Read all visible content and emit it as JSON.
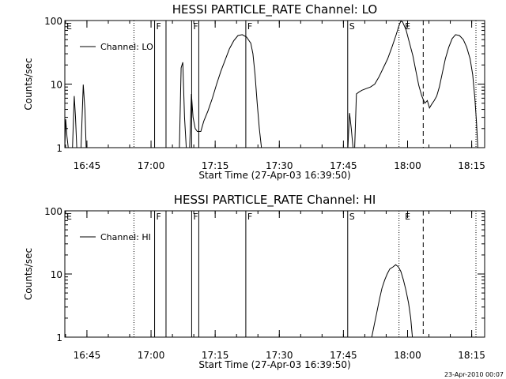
{
  "chart_data": [
    {
      "type": "line",
      "title": "HESSI PARTICLE_RATE Channel: LO",
      "xlabel": "Start Time (27-Apr-03 16:39:50)",
      "ylabel": "Counts/sec",
      "y_scale": "log",
      "ylim": [
        1,
        100
      ],
      "xlim_minutes_since_16_39_50": [
        0,
        98.2
      ],
      "x_ticks": [
        "16:45",
        "17:00",
        "17:15",
        "17:30",
        "17:45",
        "18:00",
        "18:15"
      ],
      "y_ticks": [
        "1",
        "10",
        "100"
      ],
      "legend": {
        "label": "Channel: LO",
        "placement": "top-left"
      },
      "markers": [
        {
          "letter": "E",
          "time": "16:39:50",
          "style": "none"
        },
        {
          "letter": "",
          "time": "16:56:00",
          "style": "dotted"
        },
        {
          "letter": "F",
          "time": "17:00:50",
          "style": "solid"
        },
        {
          "letter": "",
          "time": "17:03:30",
          "style": "solid"
        },
        {
          "letter": "F",
          "time": "17:09:30",
          "style": "solid"
        },
        {
          "letter": "",
          "time": "17:11:10",
          "style": "solid"
        },
        {
          "letter": "F",
          "time": "17:22:10",
          "style": "solid"
        },
        {
          "letter": "S",
          "time": "17:46:00",
          "style": "solid"
        },
        {
          "letter": "",
          "time": "17:58:00",
          "style": "dotted"
        },
        {
          "letter": "E",
          "time": "17:59:00",
          "style": "none"
        },
        {
          "letter": "",
          "time": "18:03:40",
          "style": "dashed"
        },
        {
          "letter": "",
          "time": "18:16:00",
          "style": "dotted"
        }
      ],
      "series": [
        {
          "name": "Channel: LO",
          "segments": [
            [
              [
                0.0,
                1.0
              ],
              [
                0.2,
                2.8
              ],
              [
                0.5,
                1.5
              ],
              [
                0.8,
                1.0
              ]
            ],
            [
              [
                1.8,
                1.0
              ],
              [
                2.2,
                6.5
              ],
              [
                2.5,
                3.0
              ],
              [
                2.8,
                1.0
              ]
            ],
            [
              [
                3.8,
                1.0
              ],
              [
                4.3,
                9.8
              ],
              [
                4.7,
                4.0
              ],
              [
                5.0,
                1.0
              ]
            ],
            [
              [
                26.8,
                1.0
              ],
              [
                27.2,
                18
              ],
              [
                27.6,
                22
              ],
              [
                28.0,
                3
              ],
              [
                28.4,
                1.0
              ]
            ],
            [
              [
                29.2,
                1.0
              ],
              [
                29.6,
                7
              ],
              [
                30.0,
                3
              ],
              [
                30.5,
                2
              ],
              [
                31.0,
                1.8
              ],
              [
                31.8,
                1.8
              ],
              [
                32.5,
                2.6
              ],
              [
                33.5,
                3.8
              ],
              [
                34.5,
                6
              ],
              [
                35.5,
                10
              ],
              [
                36.5,
                16
              ],
              [
                37.5,
                24
              ],
              [
                38.5,
                36
              ],
              [
                39.5,
                48
              ],
              [
                40.5,
                58
              ],
              [
                41.5,
                60
              ],
              [
                42.5,
                55
              ],
              [
                43.5,
                44
              ],
              [
                44.0,
                30
              ],
              [
                44.5,
                14
              ],
              [
                45.0,
                5
              ],
              [
                45.5,
                2
              ],
              [
                46.0,
                1.0
              ]
            ],
            [
              [
                66.2,
                1.0
              ],
              [
                66.6,
                3.5
              ],
              [
                67.0,
                2.0
              ],
              [
                67.4,
                1.0
              ]
            ],
            [
              [
                67.8,
                1.0
              ],
              [
                68.2,
                7
              ],
              [
                68.8,
                7.5
              ],
              [
                69.5,
                8
              ],
              [
                70.5,
                8.5
              ],
              [
                71.5,
                9
              ],
              [
                72.5,
                10
              ],
              [
                73.5,
                13
              ],
              [
                74.5,
                18
              ],
              [
                75.5,
                25
              ],
              [
                76.5,
                38
              ],
              [
                77.5,
                60
              ],
              [
                78.2,
                85
              ],
              [
                78.6,
                98
              ],
              [
                79.0,
                95
              ],
              [
                79.8,
                72
              ],
              [
                80.6,
                45
              ],
              [
                81.4,
                28
              ],
              [
                82.2,
                15
              ],
              [
                82.8,
                9.5
              ],
              [
                83.5,
                6.5
              ],
              [
                84.2,
                5
              ],
              [
                84.8,
                5.5
              ],
              [
                85.3,
                4.2
              ],
              [
                85.8,
                4.8
              ],
              [
                86.4,
                5.5
              ],
              [
                87.0,
                6.5
              ],
              [
                87.6,
                9
              ],
              [
                88.3,
                15
              ],
              [
                89.0,
                25
              ],
              [
                89.8,
                38
              ],
              [
                90.6,
                52
              ],
              [
                91.4,
                60
              ],
              [
                92.3,
                58
              ],
              [
                93.2,
                50
              ],
              [
                94.0,
                38
              ],
              [
                94.8,
                25
              ],
              [
                95.4,
                14
              ],
              [
                95.9,
                6
              ],
              [
                96.3,
                2.5
              ],
              [
                96.6,
                1.0
              ]
            ]
          ]
        }
      ]
    },
    {
      "type": "line",
      "title": "HESSI PARTICLE_RATE Channel: HI",
      "xlabel": "Start Time (27-Apr-03 16:39:50)",
      "ylabel": "Counts/sec",
      "y_scale": "log",
      "ylim": [
        1,
        100
      ],
      "xlim_minutes_since_16_39_50": [
        0,
        98.2
      ],
      "x_ticks": [
        "16:45",
        "17:00",
        "17:15",
        "17:30",
        "17:45",
        "18:00",
        "18:15"
      ],
      "y_ticks": [
        "1",
        "10",
        "100"
      ],
      "legend": {
        "label": "Channel: HI",
        "placement": "top-left"
      },
      "markers": [
        {
          "letter": "E",
          "time": "16:39:50",
          "style": "none"
        },
        {
          "letter": "",
          "time": "16:56:00",
          "style": "dotted"
        },
        {
          "letter": "F",
          "time": "17:00:50",
          "style": "solid"
        },
        {
          "letter": "",
          "time": "17:03:30",
          "style": "solid"
        },
        {
          "letter": "F",
          "time": "17:09:30",
          "style": "solid"
        },
        {
          "letter": "",
          "time": "17:11:10",
          "style": "solid"
        },
        {
          "letter": "F",
          "time": "17:22:10",
          "style": "solid"
        },
        {
          "letter": "S",
          "time": "17:46:00",
          "style": "solid"
        },
        {
          "letter": "",
          "time": "17:58:00",
          "style": "dotted"
        },
        {
          "letter": "E",
          "time": "17:59:00",
          "style": "none"
        },
        {
          "letter": "",
          "time": "18:03:40",
          "style": "dashed"
        },
        {
          "letter": "",
          "time": "18:16:00",
          "style": "dotted"
        }
      ],
      "series": [
        {
          "name": "Channel: HI",
          "segments": [
            [
              [
                71.8,
                1.0
              ],
              [
                72.4,
                1.6
              ],
              [
                73.0,
                2.5
              ],
              [
                73.6,
                4
              ],
              [
                74.2,
                6
              ],
              [
                74.8,
                8
              ],
              [
                75.4,
                10
              ],
              [
                76.0,
                12
              ],
              [
                76.8,
                13
              ],
              [
                77.4,
                14
              ],
              [
                78.0,
                13
              ],
              [
                78.6,
                11
              ],
              [
                79.2,
                8
              ],
              [
                79.8,
                5.5
              ],
              [
                80.4,
                3.5
              ],
              [
                80.9,
                2
              ],
              [
                81.3,
                1.0
              ]
            ]
          ]
        }
      ]
    }
  ],
  "footer": {
    "timestamp": "23-Apr-2010 00:07"
  },
  "colors": {
    "background": "#ffffff",
    "foreground": "#000000"
  }
}
